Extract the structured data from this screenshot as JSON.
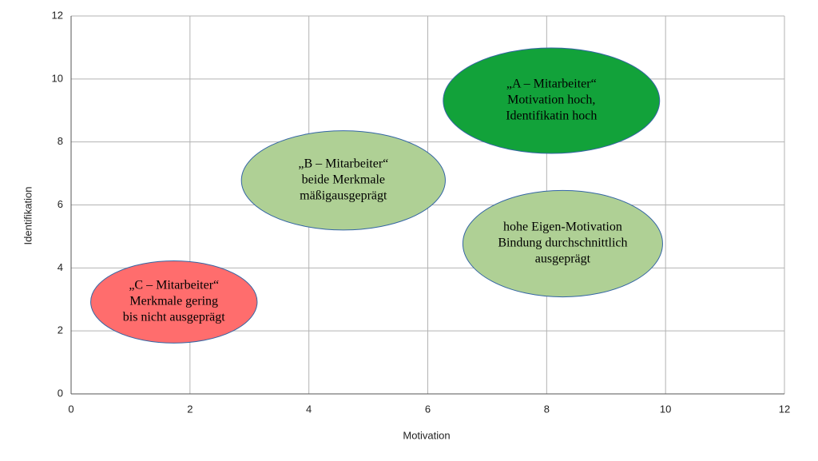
{
  "chart_data": {
    "type": "scatter",
    "x_label": "Motivation",
    "y_label": "Identifikation",
    "xlim": [
      0,
      12
    ],
    "xticks": [
      0,
      2,
      4,
      6,
      8,
      10,
      12
    ],
    "ylim": [
      0,
      12
    ],
    "yticks": [
      0,
      2,
      4,
      6,
      8,
      10,
      12
    ],
    "grid": true,
    "regions": [
      {
        "x": 8.08,
        "y": 9.31,
        "width": 3.64,
        "height": 3.35,
        "color": "#12a23a",
        "lines": [
          "„A – Mitarbeiter“",
          "Motivation hoch,",
          "Identifikatin hoch"
        ]
      },
      {
        "x": 4.58,
        "y": 6.78,
        "width": 3.43,
        "height": 3.15,
        "color": "#afd095",
        "lines": [
          "„B – Mitarbeiter“",
          "beide Merkmale",
          "mäßigausgeprägt"
        ]
      },
      {
        "x": 8.27,
        "y": 4.77,
        "width": 3.36,
        "height": 3.38,
        "color": "#afd095",
        "lines": [
          "hohe Eigen-Motivation",
          "Bindung durchschnittlich",
          "ausgeprägt"
        ]
      },
      {
        "x": 1.73,
        "y": 2.92,
        "width": 2.8,
        "height": 2.61,
        "color": "#ff6d6d",
        "lines": [
          "„C – Mitarbeiter“",
          "Merkmale gering",
          "bis nicht ausgeprägt"
        ]
      }
    ]
  }
}
